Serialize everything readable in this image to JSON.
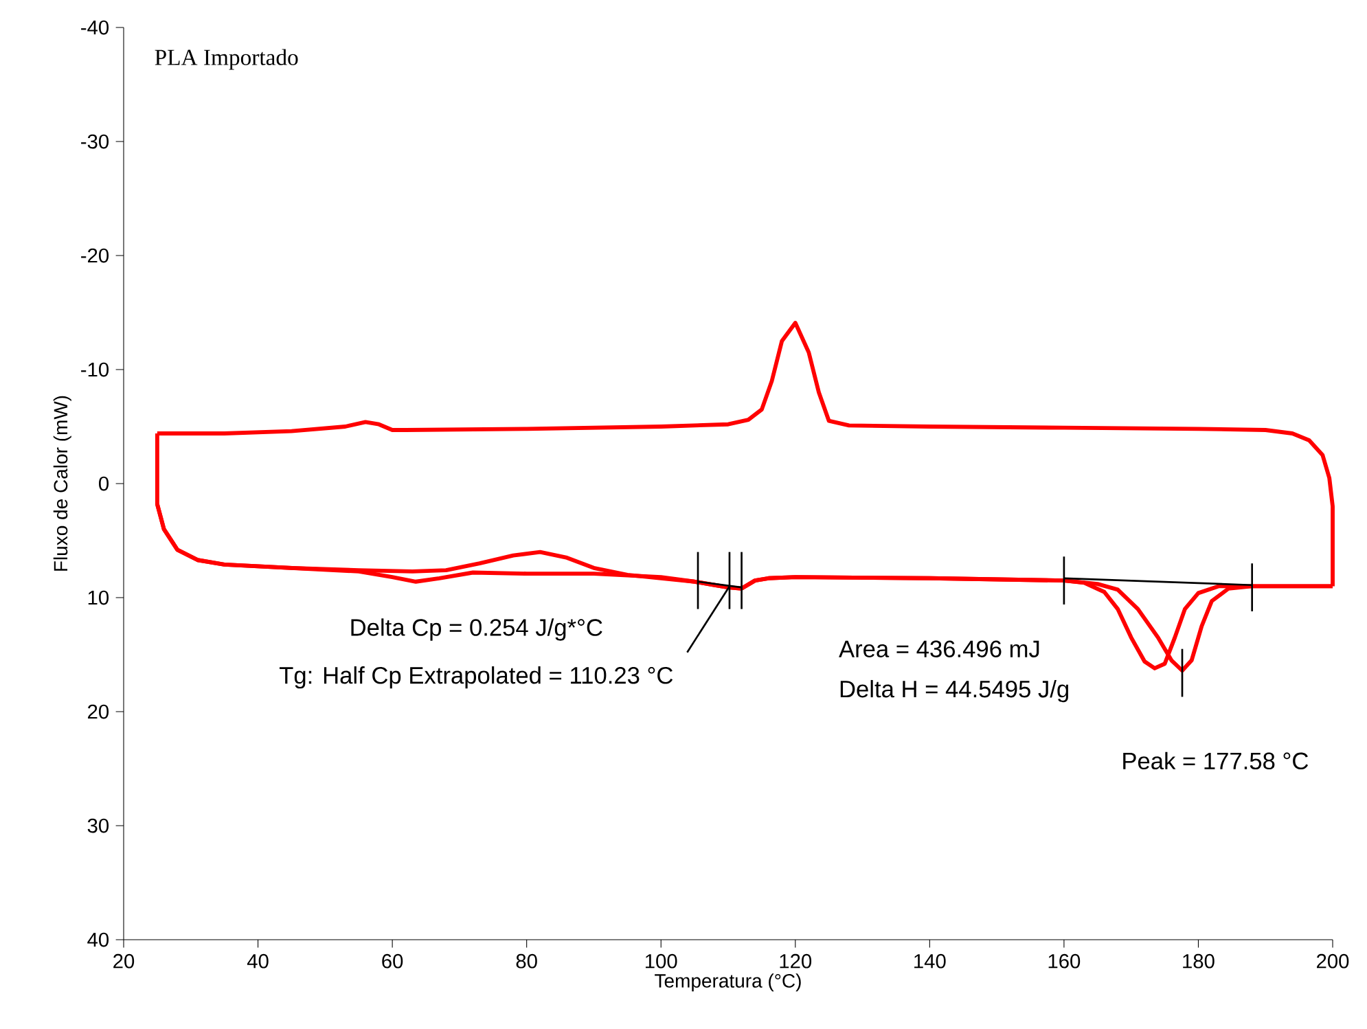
{
  "chart_data": {
    "type": "line",
    "title": "PLA Importado",
    "xlabel": "Temperatura (°C)",
    "ylabel": "Fluxo de Calor (mW)",
    "xlim": [
      20,
      200
    ],
    "xticks": [
      20,
      40,
      60,
      80,
      100,
      120,
      140,
      160,
      180,
      200
    ],
    "ylim": [
      40,
      -40
    ],
    "yticks": [
      -40,
      -30,
      -20,
      -10,
      0,
      10,
      20,
      30,
      40
    ],
    "grid": false,
    "marker": "none",
    "line_style": "solid",
    "series": [
      {
        "color": "#ff0000",
        "x": [
          200,
          200,
          199.5,
          198.5,
          196.5,
          194,
          190,
          180,
          160,
          140,
          128,
          125,
          123.5,
          122,
          120,
          118,
          116.5,
          115,
          113,
          110,
          100,
          80,
          62,
          60,
          58,
          56,
          53,
          45,
          35,
          25
        ],
        "values": [
          9.0,
          2,
          -0.5,
          -2.5,
          -3.8,
          -4.4,
          -4.7,
          -4.8,
          -4.9,
          -5.0,
          -5.1,
          -5.5,
          -8,
          -11.5,
          -14.1,
          -12.5,
          -9,
          -6.5,
          -5.6,
          -5.2,
          -5.0,
          -4.8,
          -4.7,
          -4.7,
          -5.2,
          -5.4,
          -5.0,
          -4.6,
          -4.4,
          -4.4
        ]
      },
      {
        "color": "#ff0000",
        "x": [
          25,
          25,
          26,
          28,
          31,
          35,
          45,
          55,
          60,
          63.5,
          67,
          72,
          80,
          90,
          100,
          105,
          108,
          110,
          112,
          114,
          116,
          120,
          140,
          160,
          163,
          166,
          168,
          170,
          172,
          173.5,
          175,
          176.5,
          178,
          180,
          183,
          190,
          200
        ],
        "values": [
          -4.4,
          1.8,
          4,
          5.8,
          6.7,
          7.1,
          7.4,
          7.7,
          8.2,
          8.6,
          8.3,
          7.8,
          7.9,
          7.9,
          8.2,
          8.6,
          8.9,
          9.1,
          9.2,
          8.5,
          8.3,
          8.2,
          8.3,
          8.5,
          8.7,
          9.5,
          11,
          13.5,
          15.6,
          16.2,
          15.8,
          13.5,
          11,
          9.6,
          9.0,
          9.0,
          9.0
        ]
      },
      {
        "color": "#ff0000",
        "x": [
          25,
          26,
          28,
          31,
          35,
          45,
          55,
          63,
          68,
          73,
          78,
          82,
          86,
          90,
          95,
          100,
          105,
          108,
          110,
          112,
          114,
          116,
          120,
          140,
          160,
          165,
          168,
          171,
          174,
          176,
          177.6,
          179,
          180.5,
          182,
          184.5,
          188,
          200
        ],
        "values": [
          1.8,
          4,
          5.8,
          6.7,
          7.1,
          7.4,
          7.6,
          7.7,
          7.6,
          7.0,
          6.3,
          6.0,
          6.5,
          7.4,
          8.0,
          8.3,
          8.6,
          8.9,
          9.1,
          9.2,
          8.5,
          8.3,
          8.2,
          8.3,
          8.5,
          8.8,
          9.3,
          11,
          13.5,
          15.5,
          16.4,
          15.5,
          12.5,
          10.3,
          9.2,
          9.0,
          9.0
        ]
      },
      {
        "color": "#000000",
        "x": [
          105.5,
          112
        ],
        "values": [
          8.6,
          9.1
        ]
      },
      {
        "color": "#000000",
        "x": [
          105.5,
          105.5
        ],
        "values": [
          6.0,
          11.0
        ]
      },
      {
        "color": "#000000",
        "x": [
          110.2,
          110.2
        ],
        "values": [
          6.0,
          11.0
        ]
      },
      {
        "color": "#000000",
        "x": [
          112,
          112
        ],
        "values": [
          6.0,
          11.0
        ]
      },
      {
        "color": "#000000",
        "x": [
          103.9,
          110.2
        ],
        "values": [
          14.8,
          9.0
        ]
      },
      {
        "color": "#000000",
        "x": [
          160,
          188
        ],
        "values": [
          8.3,
          8.9
        ]
      },
      {
        "color": "#000000",
        "x": [
          160,
          160
        ],
        "values": [
          6.4,
          10.6
        ]
      },
      {
        "color": "#000000",
        "x": [
          188,
          188
        ],
        "values": [
          7.0,
          11.2
        ]
      },
      {
        "color": "#000000",
        "x": [
          177.6,
          177.6
        ],
        "values": [
          14.5,
          18.7
        ]
      }
    ],
    "annotations": [
      "Delta Cp = 0.254 J/g*°C",
      "Tg: Half Cp Extrapolated = 110.23 °C",
      "Area = 436.496 mJ",
      "Delta H = 44.5495 J/g",
      "Peak = 177.58 °C"
    ]
  }
}
